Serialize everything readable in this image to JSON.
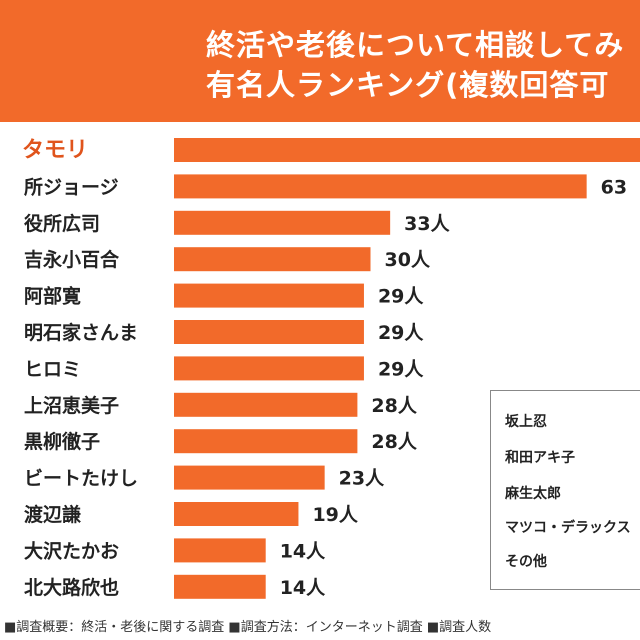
{
  "header": {
    "title_line1": "終活や老後について相談してみ",
    "title_line2": "有名人ランキング(複数回答可"
  },
  "chart_data": {
    "type": "bar",
    "orientation": "horizontal",
    "categories": [
      "タモリ",
      "所ジョージ",
      "役所広司",
      "吉永小百合",
      "阿部寛",
      "明石家さんま",
      "ヒロミ",
      "上沼恵美子",
      "黒柳徹子",
      "ビートたけし",
      "渡辺謙",
      "大沢たかお",
      "北大路欣也"
    ],
    "values": [
      null,
      63,
      33,
      30,
      29,
      29,
      29,
      28,
      28,
      23,
      19,
      14,
      14
    ],
    "value_labels": [
      "",
      "63",
      "33人",
      "30人",
      "29人",
      "29人",
      "29人",
      "28人",
      "28人",
      "23人",
      "19人",
      "14人",
      "14人"
    ],
    "bar_color": "#f26a2a",
    "highlight_color": "#e0541c"
  },
  "legend_box": {
    "items": [
      "坂上忍",
      "和田アキ子",
      "麻生太郎",
      "マツコ・デラックス",
      "その他"
    ]
  },
  "footer": {
    "text": "■調査概要：終活・老後に関する調査 ■調査方法：インターネット調査 ■調査人数"
  }
}
